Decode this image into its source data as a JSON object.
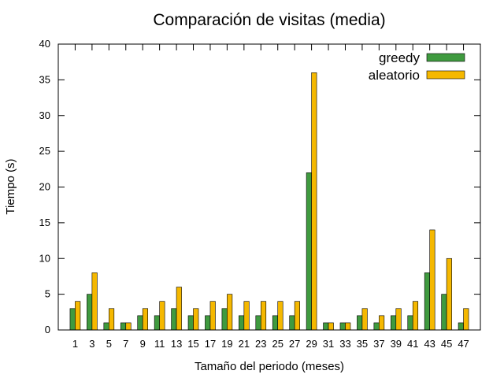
{
  "chart_data": {
    "type": "bar",
    "title": "Comparación de visitas (media)",
    "xlabel": "Tamaño del periodo (meses)",
    "ylabel": "Tiempo (s)",
    "ylim": [
      0,
      40
    ],
    "yticks": [
      0,
      5,
      10,
      15,
      20,
      25,
      30,
      35,
      40
    ],
    "categories": [
      "1",
      "3",
      "5",
      "7",
      "9",
      "11",
      "13",
      "15",
      "17",
      "19",
      "21",
      "23",
      "25",
      "27",
      "29",
      "31",
      "33",
      "35",
      "37",
      "39",
      "41",
      "43",
      "45",
      "47"
    ],
    "legend_position": "top-right",
    "grid": false,
    "series": [
      {
        "name": "greedy",
        "color": "#3f9a3f",
        "values": [
          3,
          5,
          1,
          1,
          2,
          2,
          3,
          2,
          2,
          3,
          2,
          2,
          2,
          2,
          22,
          1,
          1,
          2,
          1,
          2,
          2,
          8,
          5,
          1
        ]
      },
      {
        "name": "aleatorio",
        "color": "#f5b800",
        "values": [
          4,
          8,
          3,
          1,
          3,
          4,
          6,
          3,
          4,
          5,
          4,
          4,
          4,
          4,
          36,
          1,
          1,
          3,
          2,
          3,
          4,
          14,
          10,
          3
        ]
      }
    ]
  }
}
